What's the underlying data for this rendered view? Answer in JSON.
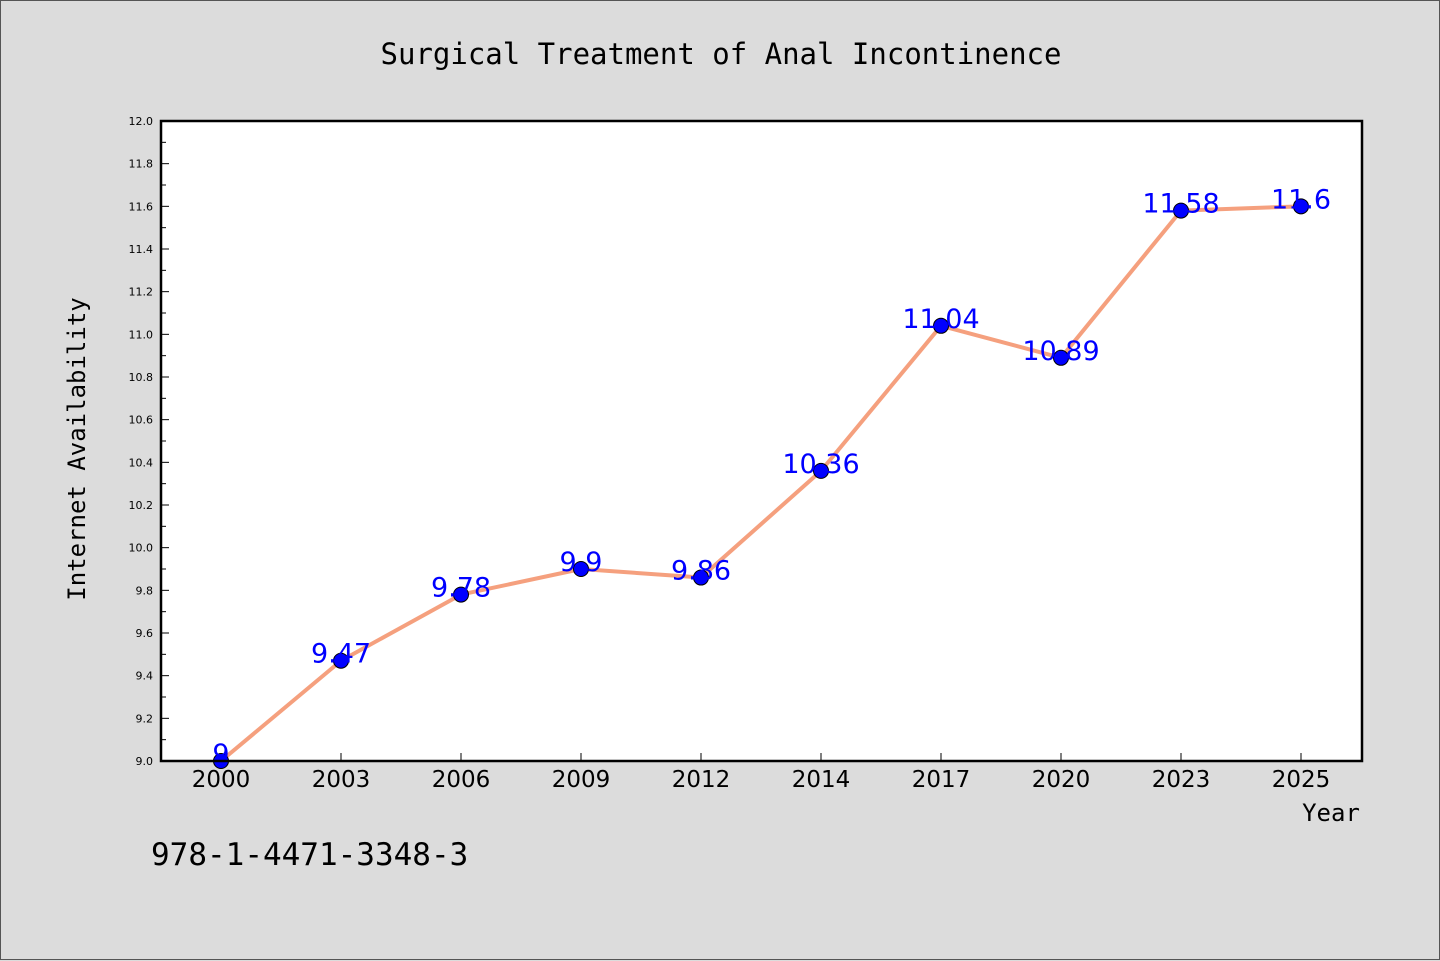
{
  "chart_data": {
    "type": "line",
    "title": "Surgical Treatment of Anal Incontinence",
    "xlabel": "Year",
    "ylabel": "Internet Availability",
    "categories": [
      "2000",
      "2003",
      "2006",
      "2009",
      "2012",
      "2014",
      "2017",
      "2020",
      "2023",
      "2025"
    ],
    "series": [
      {
        "values": [
          9,
          9.47,
          9.78,
          9.9,
          9.86,
          10.36,
          11.04,
          10.89,
          11.58,
          11.6
        ],
        "labels": [
          "9",
          "9.47",
          "9.78",
          "9.9",
          "9.86",
          "10.36",
          "11.04",
          "10.89",
          "11.58",
          "11.6"
        ],
        "line_color": "#f5a07e",
        "marker_color": "#0000ff"
      }
    ],
    "ylim": [
      9.0,
      12.0
    ],
    "yticks": [
      "9.0",
      "9.2",
      "9.4",
      "9.6",
      "9.8",
      "10.0",
      "10.2",
      "10.4",
      "10.6",
      "10.8",
      "11.0",
      "11.2",
      "11.4",
      "11.6",
      "11.8",
      "12.0"
    ],
    "grid": false,
    "legend": "none"
  },
  "footnote": "978-1-4471-3348-3",
  "colors": {
    "figure_background": "#dcdcdc",
    "plot_background": "#ffffff",
    "label_color": "#0000ff"
  }
}
